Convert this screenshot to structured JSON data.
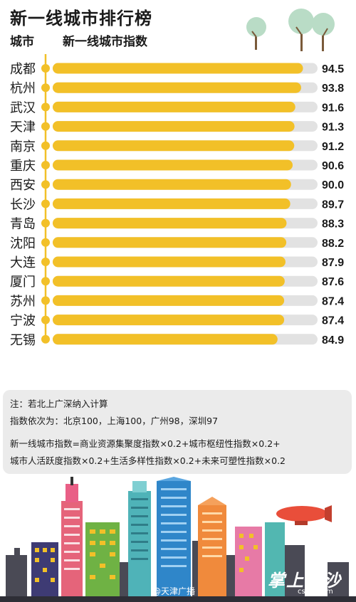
{
  "title": "新一线城市排行榜",
  "col_city": "城市",
  "col_index": "新一线城市指数",
  "chart_data": {
    "type": "bar",
    "orientation": "horizontal",
    "title": "新一线城市排行榜",
    "xlim": [
      0,
      100
    ],
    "categories": [
      "成都",
      "杭州",
      "武汉",
      "天津",
      "南京",
      "重庆",
      "西安",
      "长沙",
      "青岛",
      "沈阳",
      "大连",
      "厦门",
      "苏州",
      "宁波",
      "无锡"
    ],
    "values": [
      94.5,
      93.8,
      91.6,
      91.3,
      91.2,
      90.6,
      90.0,
      89.7,
      88.3,
      88.2,
      87.9,
      87.6,
      87.4,
      87.4,
      84.9
    ],
    "labels": [
      "94.5",
      "93.8",
      "91.6",
      "91.3",
      "91.2",
      "90.6",
      "90.0",
      "89.7",
      "88.3",
      "88.2",
      "87.9",
      "87.6",
      "87.4",
      "87.4",
      "84.9"
    ]
  },
  "notes": {
    "line1": "注：若北上广深纳入计算",
    "line2": "指数依次为：北京100，上海100，广州98，深圳97",
    "line3": "新一线城市指数=商业资源集聚度指数×0.2+城市枢纽性指数×0.2+",
    "line4": "城市人活跃度指数×0.2+生活多样性指数×0.2+未来可塑性指数×0.2"
  },
  "watermarks": {
    "left": "@天津广播",
    "right": "掌上长沙",
    "url": "cswb.com"
  },
  "colors": {
    "bar": "#f2c028",
    "track": "#e2e2e2",
    "axis": "#f2c028"
  },
  "icons": [
    "tree-icon",
    "city-skyline",
    "airship-icon"
  ]
}
